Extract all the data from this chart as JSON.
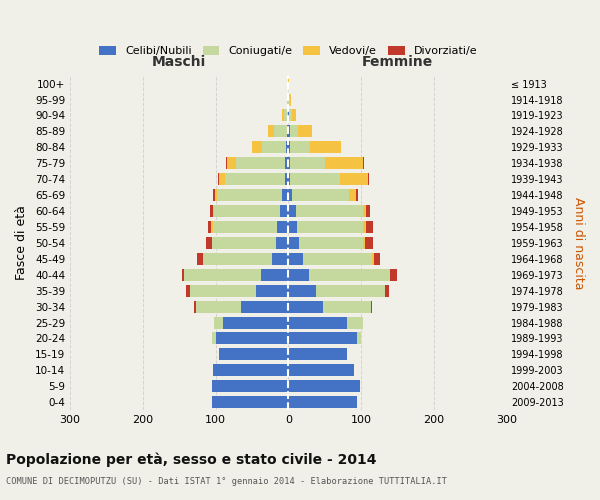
{
  "age_groups": [
    "0-4",
    "5-9",
    "10-14",
    "15-19",
    "20-24",
    "25-29",
    "30-34",
    "35-39",
    "40-44",
    "45-49",
    "50-54",
    "55-59",
    "60-64",
    "65-69",
    "70-74",
    "75-79",
    "80-84",
    "85-89",
    "90-94",
    "95-99",
    "100+"
  ],
  "birth_years": [
    "2009-2013",
    "2004-2008",
    "1999-2003",
    "1994-1998",
    "1989-1993",
    "1984-1988",
    "1979-1983",
    "1974-1978",
    "1969-1973",
    "1964-1968",
    "1959-1963",
    "1954-1958",
    "1949-1953",
    "1944-1948",
    "1939-1943",
    "1934-1938",
    "1929-1933",
    "1924-1928",
    "1919-1923",
    "1914-1918",
    "≤ 1913"
  ],
  "males": {
    "celibi": [
      105,
      105,
      103,
      95,
      100,
      90,
      65,
      45,
      38,
      22,
      17,
      16,
      12,
      8,
      5,
      4,
      3,
      2,
      1,
      0,
      1
    ],
    "coniugati": [
      0,
      0,
      0,
      0,
      5,
      12,
      62,
      90,
      105,
      95,
      88,
      88,
      90,
      90,
      82,
      68,
      33,
      18,
      5,
      2,
      0
    ],
    "vedovi": [
      0,
      0,
      0,
      0,
      0,
      0,
      0,
      0,
      0,
      0,
      0,
      2,
      2,
      3,
      8,
      12,
      14,
      8,
      2,
      0,
      0
    ],
    "divorziati": [
      0,
      0,
      0,
      0,
      0,
      0,
      2,
      5,
      3,
      8,
      8,
      5,
      3,
      2,
      2,
      1,
      0,
      0,
      0,
      0,
      0
    ]
  },
  "females": {
    "nubili": [
      95,
      98,
      90,
      80,
      95,
      80,
      48,
      38,
      28,
      20,
      15,
      12,
      10,
      5,
      3,
      3,
      2,
      2,
      1,
      0,
      0
    ],
    "coniugate": [
      0,
      0,
      0,
      0,
      5,
      22,
      65,
      95,
      112,
      95,
      88,
      90,
      92,
      78,
      68,
      48,
      28,
      12,
      4,
      2,
      0
    ],
    "vedove": [
      0,
      0,
      0,
      0,
      0,
      0,
      0,
      0,
      0,
      3,
      3,
      5,
      5,
      10,
      38,
      52,
      42,
      18,
      5,
      2,
      1
    ],
    "divorziate": [
      0,
      0,
      0,
      0,
      0,
      0,
      2,
      5,
      10,
      8,
      10,
      10,
      5,
      3,
      2,
      1,
      0,
      0,
      0,
      0,
      0
    ]
  },
  "colors": {
    "celibi": "#4472c4",
    "coniugati": "#c5d89d",
    "vedovi": "#f5c242",
    "divorziati": "#c0392b"
  },
  "title": "Popolazione per età, sesso e stato civile - 2014",
  "subtitle": "COMUNE DI DECIMOPUTZU (SU) - Dati ISTAT 1° gennaio 2014 - Elaborazione TUTTITALIA.IT",
  "ylabel_left": "Fasce di età",
  "ylabel_right": "Anni di nascita",
  "xlabel_maschi": "Maschi",
  "xlabel_femmine": "Femmine",
  "xlim": 300,
  "background_color": "#f0f0e8",
  "grid_color": "#cccccc"
}
